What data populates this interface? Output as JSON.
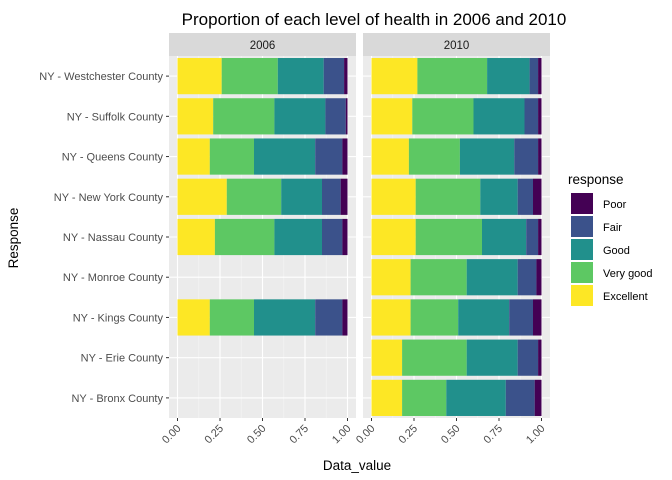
{
  "chart_data": {
    "type": "bar",
    "orientation": "horizontal",
    "stacked": true,
    "title": "Proportion of each level of health in 2006 and 2010",
    "xlabel": "Data_value",
    "ylabel": "Response",
    "xlim": [
      0,
      1
    ],
    "x_ticks": [
      "0.00",
      "0.25",
      "0.50",
      "0.75",
      "1.00"
    ],
    "grid": true,
    "legend_position": "right",
    "legend_title": "response",
    "categories": [
      "NY - Westchester County",
      "NY - Suffolk County",
      "NY - Queens County",
      "NY - New York County",
      "NY - Nassau County",
      "NY - Monroe County",
      "NY - Kings County",
      "NY - Erie County",
      "NY - Bronx County"
    ],
    "series": [
      {
        "name": "Poor",
        "color": "#440154"
      },
      {
        "name": "Fair",
        "color": "#3B528B"
      },
      {
        "name": "Good",
        "color": "#21908C"
      },
      {
        "name": "Very good",
        "color": "#5DC863"
      },
      {
        "name": "Excellent",
        "color": "#FDE725"
      }
    ],
    "panels": [
      {
        "label": "2006",
        "values": {
          "NY - Westchester County": {
            "Excellent": 0.26,
            "Very good": 0.33,
            "Good": 0.27,
            "Fair": 0.12,
            "Poor": 0.02
          },
          "NY - Suffolk County": {
            "Excellent": 0.21,
            "Very good": 0.36,
            "Good": 0.3,
            "Fair": 0.12,
            "Poor": 0.01
          },
          "NY - Queens County": {
            "Excellent": 0.19,
            "Very good": 0.26,
            "Good": 0.36,
            "Fair": 0.16,
            "Poor": 0.03
          },
          "NY - New York County": {
            "Excellent": 0.29,
            "Very good": 0.32,
            "Good": 0.24,
            "Fair": 0.11,
            "Poor": 0.04
          },
          "NY - Nassau County": {
            "Excellent": 0.22,
            "Very good": 0.35,
            "Good": 0.28,
            "Fair": 0.12,
            "Poor": 0.03
          },
          "NY - Kings County": {
            "Excellent": 0.19,
            "Very good": 0.26,
            "Good": 0.36,
            "Fair": 0.16,
            "Poor": 0.03
          }
        }
      },
      {
        "label": "2010",
        "values": {
          "NY - Westchester County": {
            "Excellent": 0.27,
            "Very good": 0.41,
            "Good": 0.25,
            "Fair": 0.05,
            "Poor": 0.02
          },
          "NY - Suffolk County": {
            "Excellent": 0.24,
            "Very good": 0.36,
            "Good": 0.3,
            "Fair": 0.08,
            "Poor": 0.02
          },
          "NY - Queens County": {
            "Excellent": 0.22,
            "Very good": 0.3,
            "Good": 0.32,
            "Fair": 0.14,
            "Poor": 0.02
          },
          "NY - New York County": {
            "Excellent": 0.26,
            "Very good": 0.38,
            "Good": 0.22,
            "Fair": 0.09,
            "Poor": 0.05
          },
          "NY - Nassau County": {
            "Excellent": 0.26,
            "Very good": 0.39,
            "Good": 0.26,
            "Fair": 0.07,
            "Poor": 0.02
          },
          "NY - Monroe County": {
            "Excellent": 0.23,
            "Very good": 0.33,
            "Good": 0.3,
            "Fair": 0.11,
            "Poor": 0.03
          },
          "NY - Kings County": {
            "Excellent": 0.23,
            "Very good": 0.28,
            "Good": 0.3,
            "Fair": 0.14,
            "Poor": 0.05
          },
          "NY - Erie County": {
            "Excellent": 0.18,
            "Very good": 0.38,
            "Good": 0.3,
            "Fair": 0.12,
            "Poor": 0.02
          },
          "NY - Bronx County": {
            "Excellent": 0.18,
            "Very good": 0.26,
            "Good": 0.35,
            "Fair": 0.17,
            "Poor": 0.04
          }
        }
      }
    ]
  }
}
